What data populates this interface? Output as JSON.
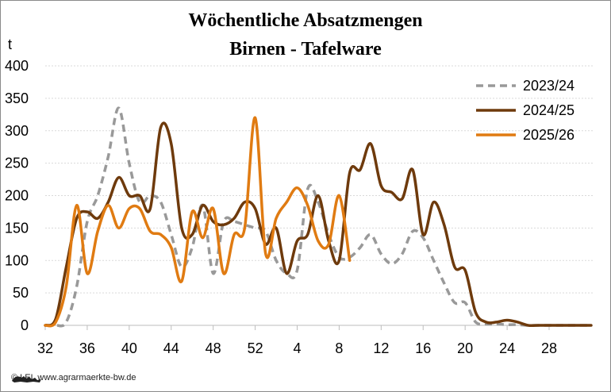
{
  "chart_data": {
    "type": "line",
    "title": "Wöchentliche Absatzmengen",
    "subtitle": "Birnen - Tafelware",
    "ylabel": "t",
    "ylim": [
      0,
      400
    ],
    "yticks": [
      0,
      50,
      100,
      150,
      200,
      250,
      300,
      350,
      400
    ],
    "xlabels": [
      "32",
      "36",
      "40",
      "44",
      "48",
      "52",
      "4",
      "8",
      "12",
      "16",
      "20",
      "24",
      "28"
    ],
    "grid": true,
    "legend_position": "top-right",
    "series": [
      {
        "name": "2023/24",
        "color": "#999999",
        "dash": true,
        "start_week_index": 0,
        "values": [
          0,
          0,
          5,
          60,
          160,
          200,
          260,
          335,
          250,
          190,
          200,
          190,
          140,
          90,
          120,
          185,
          80,
          160,
          160,
          155,
          150,
          145,
          100,
          80,
          85,
          210,
          190,
          140,
          105,
          105,
          120,
          140,
          110,
          95,
          110,
          145,
          135,
          100,
          65,
          35,
          35,
          5,
          2,
          2,
          1,
          1,
          0,
          0,
          0,
          0,
          0,
          0,
          0
        ]
      },
      {
        "name": "2024/25",
        "color": "#6e3a0c",
        "dash": false,
        "start_week_index": 0,
        "values": [
          0,
          10,
          90,
          165,
          175,
          165,
          190,
          228,
          200,
          200,
          180,
          305,
          280,
          150,
          140,
          185,
          160,
          155,
          165,
          190,
          180,
          125,
          150,
          80,
          130,
          140,
          200,
          130,
          100,
          235,
          240,
          280,
          215,
          205,
          195,
          240,
          140,
          190,
          155,
          90,
          85,
          20,
          5,
          5,
          8,
          5,
          0,
          0,
          0,
          0,
          0,
          0,
          0
        ]
      },
      {
        "name": "2025/26",
        "color": "#e07b12",
        "dash": false,
        "start_week_index": 0,
        "values": [
          0,
          5,
          60,
          185,
          80,
          145,
          185,
          150,
          180,
          180,
          145,
          140,
          120,
          68,
          175,
          135,
          180,
          80,
          140,
          150,
          320,
          110,
          165,
          190,
          212,
          185,
          130,
          125,
          200,
          100
        ]
      }
    ]
  },
  "footer": {
    "text": "© LEL www.agrarmaerkte-bw.de",
    "logo_icon": "lion-logo-icon"
  }
}
